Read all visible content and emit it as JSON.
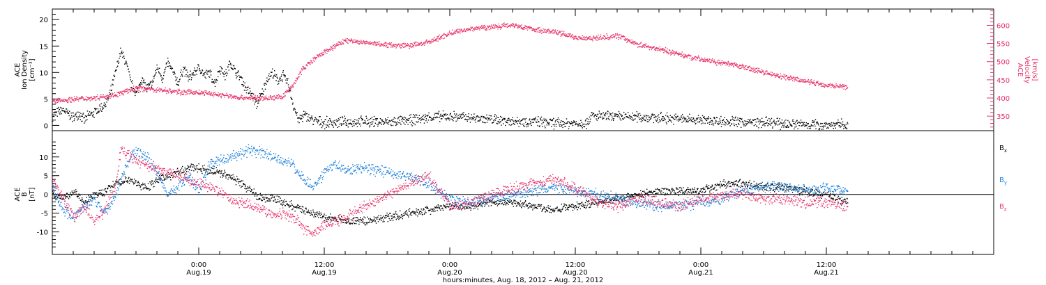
{
  "chart_data": [
    {
      "type": "scatter",
      "panel": "top",
      "ylabel_left": [
        "ACE",
        "Ion Density",
        "[cm⁻³]"
      ],
      "ylabel_right": [
        "ACE",
        "Velocity",
        "[km/s]"
      ],
      "ylim_left": [
        -1,
        22
      ],
      "ylim_right": [
        310,
        645
      ],
      "yticks_left": [
        "0",
        "5",
        "10",
        "15",
        "20"
      ],
      "yticks_right": [
        "350",
        "400",
        "450",
        "500",
        "550",
        "600"
      ],
      "left_color": "#000000",
      "right_color": "#e8336a",
      "series": [
        {
          "axis": "left",
          "color": "#000000",
          "x_hours": [
            -14,
            -13,
            -12,
            -11.5,
            -11,
            -10.5,
            -10,
            -9,
            -8.5,
            -8,
            -7.5,
            -7,
            -6.5,
            -6,
            -5.5,
            -5,
            -4.5,
            -4,
            -3.5,
            -3,
            -2.5,
            -2,
            -1.5,
            -1,
            -0.5,
            0,
            0.5,
            1,
            1.5,
            2,
            2.5,
            3,
            3.5,
            4,
            4.5,
            5,
            5.5,
            6,
            6.5,
            7,
            7.5,
            8,
            8.5,
            9,
            9.5,
            10,
            11,
            12,
            14,
            16,
            18,
            20,
            22,
            24,
            26,
            28,
            30,
            32,
            34,
            36,
            37,
            37.5,
            38,
            40,
            42,
            44,
            46,
            48,
            50,
            52,
            54,
            56,
            58,
            60,
            62
          ],
          "values": [
            2.0,
            3.0,
            1.5,
            2.5,
            1.0,
            2.0,
            2.5,
            4.0,
            6.0,
            10.0,
            14.0,
            12.0,
            8.0,
            6.0,
            9.0,
            7.0,
            8.0,
            11.0,
            9.0,
            12.0,
            10.0,
            8.0,
            11.0,
            9.0,
            10.0,
            11.0,
            9.5,
            10.0,
            8.0,
            11.0,
            9.5,
            12.0,
            10.0,
            9.0,
            7.0,
            6.0,
            4.0,
            6.0,
            9.0,
            10.0,
            8.5,
            9.5,
            8.0,
            4.0,
            1.0,
            2.0,
            1.0,
            0.6,
            0.7,
            0.8,
            0.7,
            1.0,
            1.6,
            1.8,
            1.5,
            1.2,
            0.9,
            0.8,
            0.5,
            0.5,
            0.5,
            1.9,
            1.8,
            1.7,
            1.7,
            1.5,
            1.3,
            1.1,
            0.9,
            0.7,
            0.6,
            0.4,
            0.3,
            0.2,
            0.2
          ]
        },
        {
          "axis": "right",
          "color": "#e8336a",
          "x_hours": [
            -14,
            -12,
            -10,
            -8,
            -6,
            -4,
            -2,
            0,
            2,
            4,
            6,
            7,
            8,
            9,
            10,
            11,
            12,
            14,
            16,
            18,
            20,
            22,
            24,
            26,
            28,
            30,
            32,
            34,
            36,
            38,
            40,
            42,
            44,
            46,
            48,
            50,
            52,
            54,
            56,
            58,
            60,
            62
          ],
          "values": [
            392,
            398,
            402,
            410,
            428,
            424,
            418,
            416,
            410,
            402,
            400,
            402,
            404,
            438,
            485,
            508,
            528,
            560,
            553,
            548,
            545,
            555,
            580,
            592,
            597,
            603,
            590,
            583,
            568,
            566,
            573,
            548,
            536,
            521,
            508,
            497,
            487,
            472,
            458,
            447,
            437,
            432
          ]
        }
      ]
    },
    {
      "type": "scatter",
      "panel": "bottom",
      "ylabel_left": [
        "ACE",
        "B",
        "[nT]"
      ],
      "ylim": [
        -16,
        17
      ],
      "yticks": [
        "-10",
        "-5",
        "0",
        "5",
        "10"
      ],
      "legend": [
        {
          "label": "B",
          "sub": "x",
          "color": "#000000"
        },
        {
          "label": "B",
          "sub": "y",
          "color": "#1a7fd9"
        },
        {
          "label": "B",
          "sub": "z",
          "color": "#e8336a"
        }
      ],
      "series": [
        {
          "name": "Bx",
          "color": "#000000",
          "x_hours": [
            -14,
            -13,
            -12,
            -11,
            -10,
            -9,
            -8.5,
            -8,
            -7,
            -6,
            -5,
            -4,
            -3,
            -2,
            -1,
            0,
            1,
            2,
            3,
            4,
            5,
            6,
            7,
            8,
            9,
            10,
            11,
            12,
            14,
            16,
            18,
            20,
            22,
            24,
            26,
            28,
            30,
            32,
            34,
            36,
            38,
            40,
            42,
            44,
            46,
            48,
            50,
            52,
            54,
            56,
            58,
            60,
            62
          ],
          "values": [
            0,
            -1,
            1,
            -2,
            0,
            1,
            2,
            3,
            4,
            3,
            2,
            4,
            5,
            6,
            7,
            7,
            6.5,
            6,
            5,
            3,
            1,
            -1,
            -1,
            -2,
            -3,
            -4,
            -5,
            -6,
            -7,
            -7,
            -6,
            -5,
            -4,
            -3,
            -3,
            -2,
            -2,
            -3,
            -4,
            -3,
            -2,
            -1,
            0,
            1,
            1,
            1,
            3,
            3,
            2,
            2,
            1,
            0,
            -2
          ]
        },
        {
          "name": "By",
          "color": "#1a7fd9",
          "x_hours": [
            -14,
            -13,
            -12,
            -11,
            -10,
            -9,
            -8,
            -7,
            -6,
            -5,
            -4,
            -3,
            -2,
            -1,
            0,
            1,
            2,
            3,
            4,
            5,
            6,
            7,
            8,
            9,
            10,
            11,
            12,
            13,
            14,
            16,
            18,
            20,
            22,
            24,
            26,
            28,
            30,
            32,
            34,
            36,
            38,
            40,
            42,
            44,
            46,
            48,
            50,
            52,
            54,
            56,
            58,
            60,
            62
          ],
          "values": [
            2,
            -4,
            -6,
            -3,
            -1,
            -5,
            0,
            8,
            12,
            10,
            6,
            0,
            2,
            5,
            1,
            8,
            9,
            10,
            11,
            12,
            11,
            10,
            9,
            8,
            4,
            2,
            6,
            8,
            7,
            7,
            6,
            5,
            3,
            -1,
            -2,
            -1,
            0,
            1,
            2,
            1,
            0,
            -1,
            -2,
            -3,
            -3,
            -2,
            -1,
            1,
            2,
            2,
            1,
            2,
            1
          ]
        },
        {
          "name": "Bz",
          "color": "#e8336a",
          "x_hours": [
            -14,
            -13,
            -12,
            -11,
            -10,
            -9,
            -8,
            -7.5,
            -7,
            -6,
            -5,
            -4,
            -3,
            -2,
            -1,
            0,
            1,
            2,
            3,
            4,
            5,
            6,
            7,
            8,
            9,
            10,
            11,
            12,
            14,
            16,
            18,
            20,
            22,
            24,
            26,
            28,
            30,
            32,
            34,
            36,
            38,
            40,
            42,
            44,
            46,
            48,
            50,
            52,
            54,
            56,
            58,
            60,
            62
          ],
          "values": [
            4,
            -1,
            -6,
            -3,
            -7,
            -4,
            2,
            12,
            11,
            9,
            8,
            7,
            6,
            5,
            4,
            3,
            2,
            1,
            -1,
            -2,
            -3,
            -4,
            -5,
            -5,
            -6,
            -9,
            -10,
            -8,
            -6,
            -3,
            0,
            3,
            5,
            -3,
            -2,
            0,
            2,
            3,
            4,
            2,
            -2,
            -3,
            -1,
            -2,
            -3,
            -1,
            0,
            0,
            -1,
            -1,
            -2,
            -2,
            -3
          ]
        }
      ]
    }
  ],
  "x_axis": {
    "range_hours": [
      -14,
      76
    ],
    "ticks": [
      {
        "time": "0:00",
        "date": "Aug.19"
      },
      {
        "time": "12:00",
        "date": "Aug.19"
      },
      {
        "time": "0:00",
        "date": "Aug.20"
      },
      {
        "time": "12:00",
        "date": "Aug.20"
      },
      {
        "time": "0:00",
        "date": "Aug.21"
      },
      {
        "time": "12:00",
        "date": "Aug.21"
      }
    ],
    "label": "hours:minutes, Aug. 18, 2012 – Aug. 21, 2012"
  }
}
